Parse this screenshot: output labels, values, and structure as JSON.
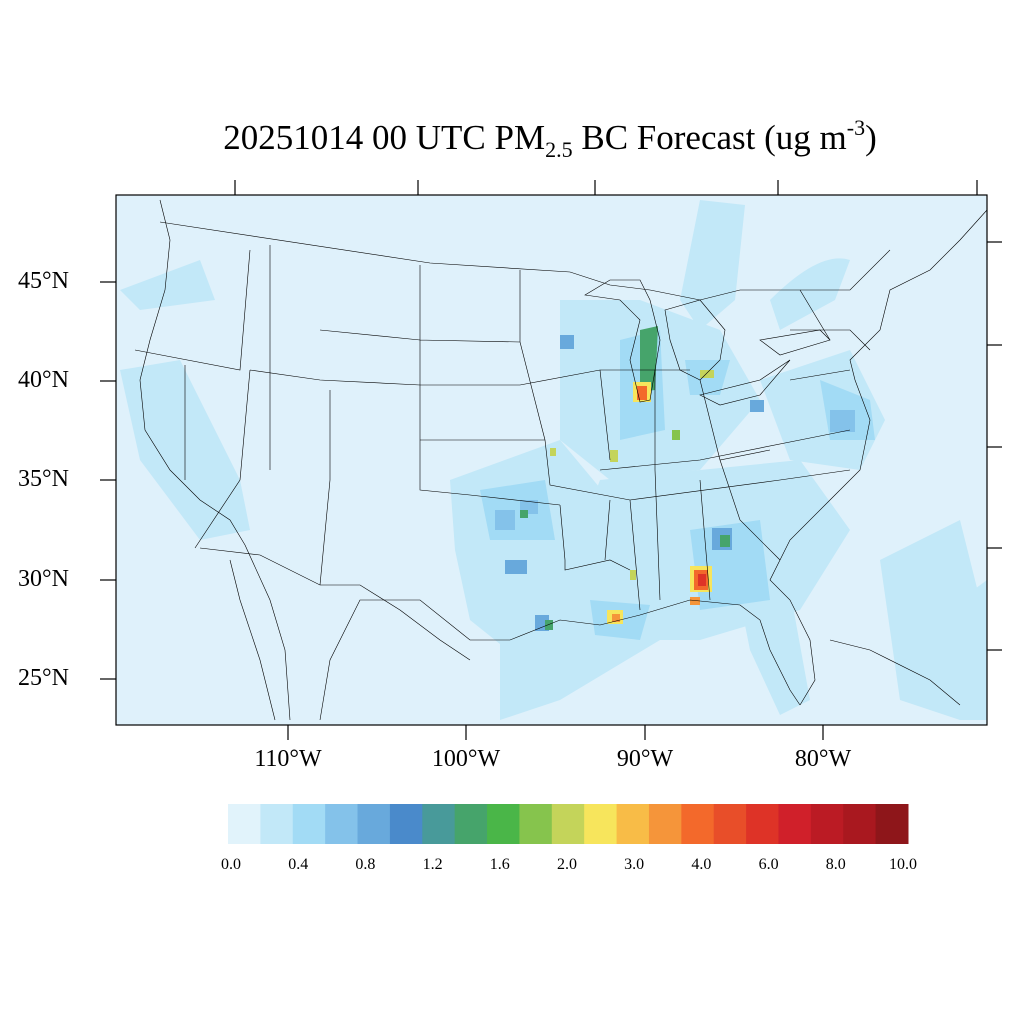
{
  "title": {
    "prefix": "20251014 00 UTC PM",
    "subscript": "2.5",
    "middle": " BC Forecast (ug m",
    "superscript": "-3",
    "suffix": ")"
  },
  "map": {
    "background_color": "#dff1fb",
    "region": "CONUS",
    "lat_labels": [
      "45°N",
      "40°N",
      "35°N",
      "30°N",
      "25°N"
    ],
    "lon_labels": [
      "110°W",
      "100°W",
      "90°W",
      "80°W"
    ]
  },
  "colorbar": {
    "colors": [
      "#e1f3fb",
      "#c2e8f8",
      "#a2dbf5",
      "#84c2ea",
      "#68a9dc",
      "#4a8acb",
      "#489a9a",
      "#46a46b",
      "#4ab648",
      "#86c44d",
      "#c4d45a",
      "#f7e55c",
      "#f8bc47",
      "#f5953a",
      "#f3692b",
      "#e84e29",
      "#de3327",
      "#d0202a",
      "#bb1b24",
      "#a9181f",
      "#8e161a"
    ],
    "labels": [
      "0.0",
      "0.4",
      "0.8",
      "1.2",
      "1.6",
      "2.0",
      "3.0",
      "4.0",
      "6.0",
      "8.0",
      "10.0"
    ]
  }
}
